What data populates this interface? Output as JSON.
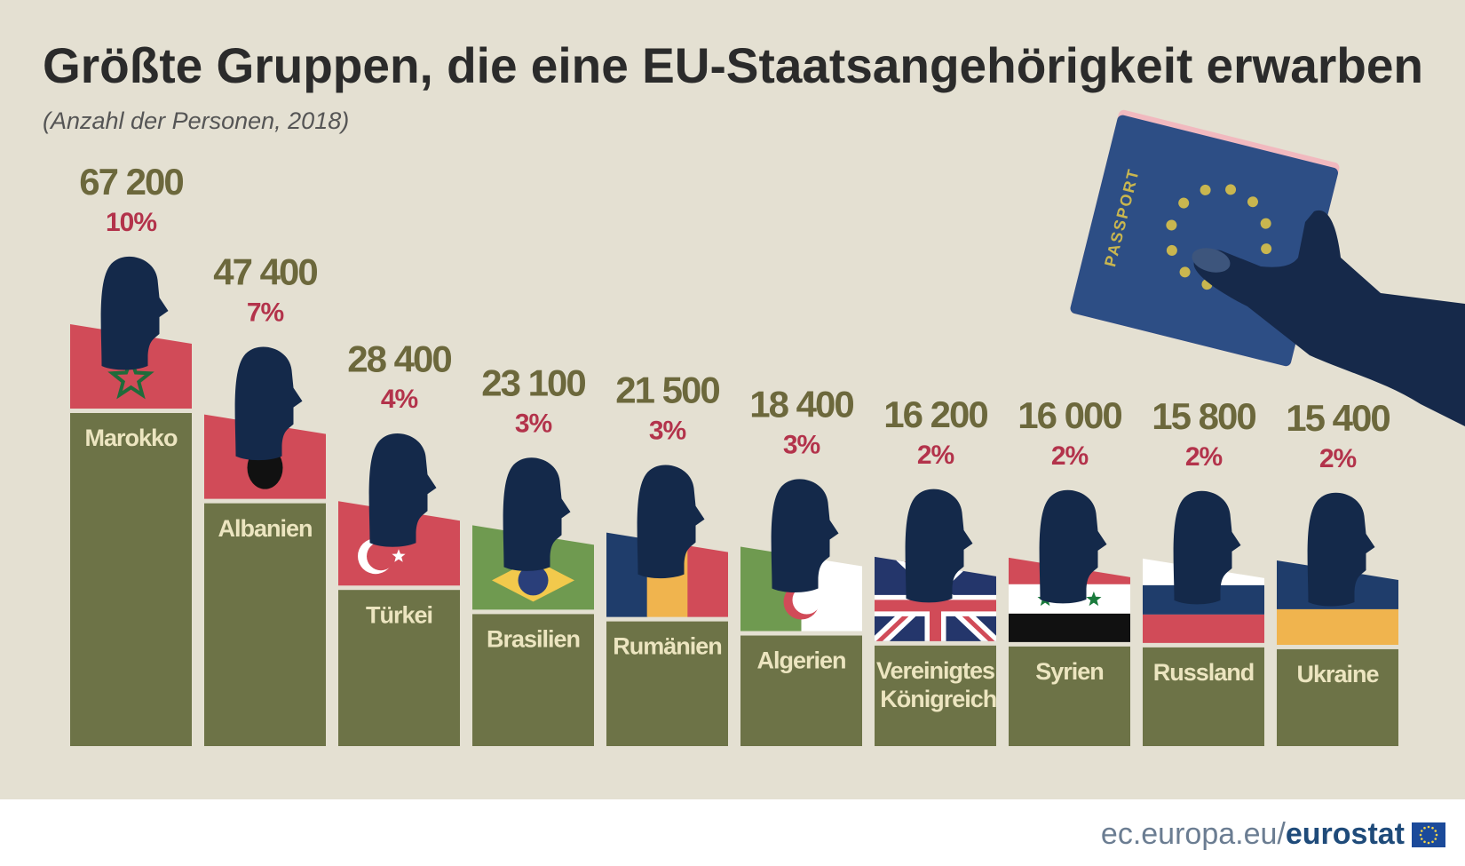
{
  "chart_data": {
    "type": "bar",
    "title": "Größte Gruppen, die eine EU-Staatsangehörigkeit erwarben",
    "subtitle": "(Anzahl der Personen, 2018)",
    "categories": [
      "Marokko",
      "Albanien",
      "Türkei",
      "Brasilien",
      "Rumänien",
      "Algerien",
      "Vereinigtes Königreich",
      "Syrien",
      "Russland",
      "Ukraine"
    ],
    "values": [
      67200,
      47400,
      28400,
      23100,
      21500,
      18400,
      16200,
      16000,
      15800,
      15400
    ],
    "value_labels": [
      "67 200",
      "47 400",
      "28 400",
      "23 100",
      "21 500",
      "18 400",
      "16 200",
      "16 000",
      "15 800",
      "15 400"
    ],
    "shares": {
      "values": [
        10,
        7,
        4,
        3,
        3,
        3,
        2,
        2,
        2,
        2
      ],
      "value_labels": [
        "10%",
        "7%",
        "4%",
        "3%",
        "3%",
        "3%",
        "2%",
        "2%",
        "2%",
        "2%"
      ]
    },
    "color": "#6d7347"
  },
  "illustration_text": "PASSPORT",
  "footer": {
    "site": "ec.europa.eu/",
    "brand": "eurostat"
  }
}
